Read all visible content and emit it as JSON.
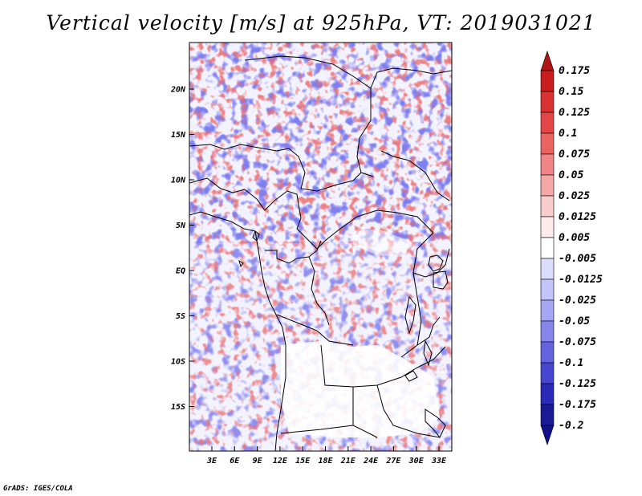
{
  "title": "Vertical velocity [m/s] at 925hPa, VT: 2019031021",
  "footer": "GrADS: IGES/COLA",
  "map": {
    "lat_labels": [
      "20N",
      "15N",
      "10N",
      "5N",
      "EQ",
      "5S",
      "10S",
      "15S"
    ],
    "lon_labels": [
      "3E",
      "6E",
      "9E",
      "12E",
      "15E",
      "18E",
      "21E",
      "24E",
      "27E",
      "30E",
      "33E"
    ],
    "lat_range": [
      -20,
      25
    ],
    "lon_range": [
      0,
      35
    ]
  },
  "colorbar": {
    "labels": [
      "0.175",
      "0.15",
      "0.125",
      "0.1",
      "0.075",
      "0.05",
      "0.025",
      "0.0125",
      "0.005",
      "-0.005",
      "-0.0125",
      "-0.025",
      "-0.05",
      "-0.075",
      "-0.1",
      "-0.125",
      "-0.175",
      "-0.2"
    ],
    "colors": [
      "#b01515",
      "#c81e1e",
      "#d83232",
      "#e24646",
      "#ea6464",
      "#f08585",
      "#f5a8a8",
      "#f9cccc",
      "#fdeaea",
      "#ffffff",
      "#dcdcfc",
      "#c4c4f8",
      "#a6a6f2",
      "#8686ea",
      "#6464e0",
      "#4646d0",
      "#2a2ab8",
      "#1a1a96",
      "#10108a"
    ]
  }
}
